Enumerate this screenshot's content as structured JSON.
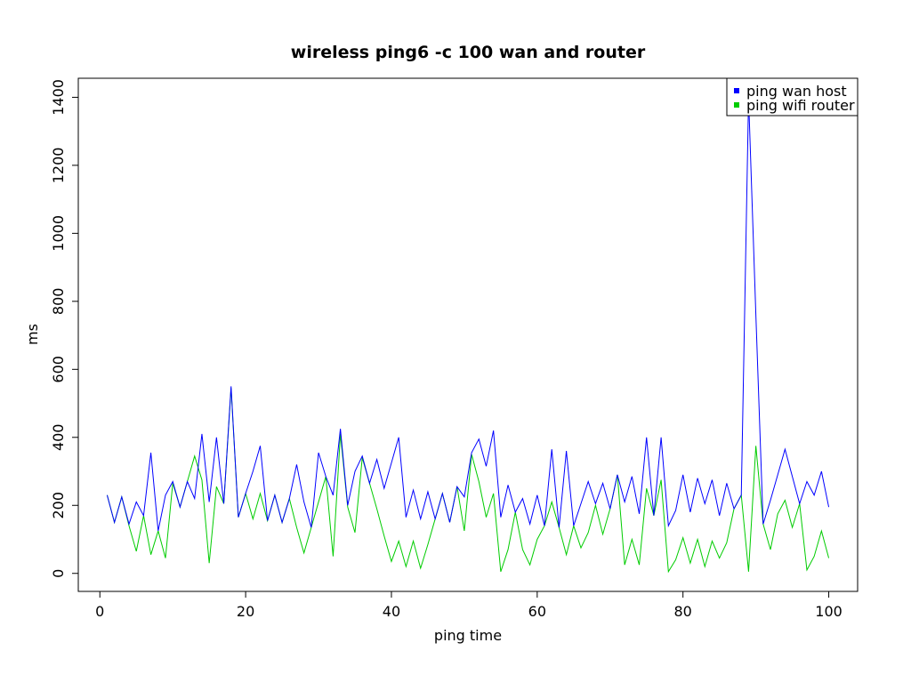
{
  "chart_data": {
    "type": "line",
    "title": "wireless ping6 -c 100 wan and router",
    "xlabel": "ping time",
    "ylabel": "ms",
    "x": [
      1,
      2,
      3,
      4,
      5,
      6,
      7,
      8,
      9,
      10,
      11,
      12,
      13,
      14,
      15,
      16,
      17,
      18,
      19,
      20,
      21,
      22,
      23,
      24,
      25,
      26,
      27,
      28,
      29,
      30,
      31,
      32,
      33,
      34,
      35,
      36,
      37,
      38,
      39,
      40,
      41,
      42,
      43,
      44,
      45,
      46,
      47,
      48,
      49,
      50,
      51,
      52,
      53,
      54,
      55,
      56,
      57,
      58,
      59,
      60,
      61,
      62,
      63,
      64,
      65,
      66,
      67,
      68,
      69,
      70,
      71,
      72,
      73,
      74,
      75,
      76,
      77,
      78,
      79,
      80,
      81,
      82,
      83,
      84,
      85,
      86,
      87,
      88,
      89,
      90,
      91,
      92,
      93,
      94,
      95,
      96,
      97,
      98,
      99,
      100
    ],
    "series": [
      {
        "name": "ping wan host",
        "color": "#0000ff",
        "values": [
          230,
          150,
          225,
          145,
          210,
          170,
          355,
          125,
          230,
          270,
          195,
          270,
          220,
          410,
          210,
          400,
          205,
          550,
          165,
          235,
          300,
          375,
          155,
          230,
          150,
          220,
          320,
          210,
          135,
          355,
          285,
          230,
          425,
          200,
          300,
          345,
          265,
          335,
          250,
          325,
          400,
          165,
          245,
          160,
          240,
          160,
          235,
          150,
          255,
          225,
          355,
          395,
          315,
          420,
          165,
          260,
          180,
          220,
          145,
          230,
          140,
          365,
          135,
          360,
          140,
          205,
          270,
          205,
          265,
          190,
          290,
          210,
          285,
          175,
          400,
          170,
          400,
          140,
          185,
          290,
          180,
          280,
          205,
          275,
          170,
          265,
          190,
          230,
          1400,
          760,
          145,
          215,
          290,
          365,
          285,
          205,
          270,
          230,
          300,
          195
        ]
      },
      {
        "name": "ping wifi router",
        "color": "#00cc00",
        "values": [
          230,
          150,
          225,
          140,
          65,
          170,
          55,
          125,
          45,
          265,
          195,
          270,
          345,
          275,
          30,
          255,
          205,
          545,
          165,
          235,
          160,
          235,
          155,
          230,
          150,
          220,
          135,
          60,
          135,
          210,
          285,
          50,
          410,
          195,
          120,
          340,
          265,
          190,
          110,
          35,
          95,
          20,
          95,
          15,
          85,
          160,
          235,
          150,
          255,
          125,
          350,
          270,
          165,
          235,
          5,
          70,
          180,
          70,
          25,
          100,
          140,
          210,
          135,
          55,
          140,
          75,
          120,
          200,
          115,
          190,
          290,
          25,
          100,
          25,
          250,
          170,
          275,
          5,
          40,
          105,
          30,
          100,
          20,
          95,
          45,
          90,
          190,
          230,
          5,
          375,
          145,
          70,
          175,
          215,
          135,
          205,
          10,
          50,
          125,
          45
        ]
      }
    ],
    "xlim": [
      -2.96,
      103.96
    ],
    "ylim": [
      -53,
      1456
    ],
    "xticks": [
      0,
      20,
      40,
      60,
      80,
      100
    ],
    "yticks": [
      0,
      200,
      400,
      600,
      800,
      1000,
      1200,
      1400
    ],
    "legend": "top-right"
  }
}
